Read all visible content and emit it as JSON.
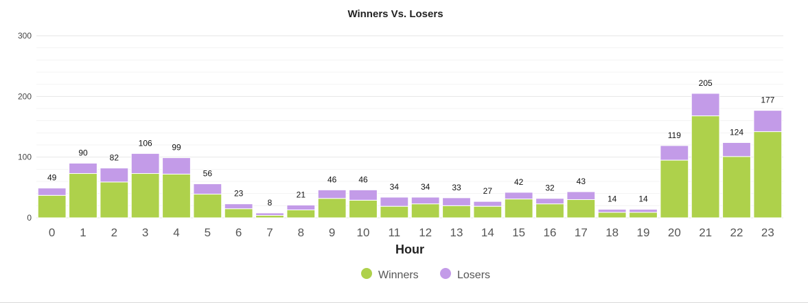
{
  "chart_data": {
    "type": "bar",
    "stacked": true,
    "title": "Winners Vs. Losers",
    "xlabel": "Hour",
    "ylabel": "",
    "ylim": [
      0,
      300
    ],
    "yticks": [
      0,
      100,
      200,
      300
    ],
    "grid": true,
    "legend_position": "bottom-center",
    "categories": [
      "0",
      "1",
      "2",
      "3",
      "4",
      "5",
      "6",
      "7",
      "8",
      "9",
      "10",
      "11",
      "12",
      "13",
      "14",
      "15",
      "16",
      "17",
      "18",
      "19",
      "20",
      "21",
      "22",
      "23"
    ],
    "series": [
      {
        "name": "Winners",
        "color": "#aed14b",
        "values": [
          37,
          73,
          59,
          73,
          72,
          39,
          15,
          4,
          13,
          32,
          29,
          19,
          23,
          20,
          19,
          31,
          23,
          30,
          9,
          9,
          95,
          168,
          101,
          142
        ]
      },
      {
        "name": "Losers",
        "color": "#c39be8",
        "values": [
          12,
          17,
          23,
          33,
          27,
          17,
          8,
          4,
          8,
          14,
          17,
          15,
          11,
          13,
          8,
          11,
          9,
          13,
          5,
          5,
          24,
          37,
          23,
          35
        ]
      }
    ],
    "totals": [
      49,
      90,
      82,
      106,
      99,
      56,
      23,
      8,
      21,
      46,
      46,
      34,
      34,
      33,
      27,
      42,
      32,
      43,
      14,
      14,
      119,
      205,
      124,
      177
    ]
  }
}
